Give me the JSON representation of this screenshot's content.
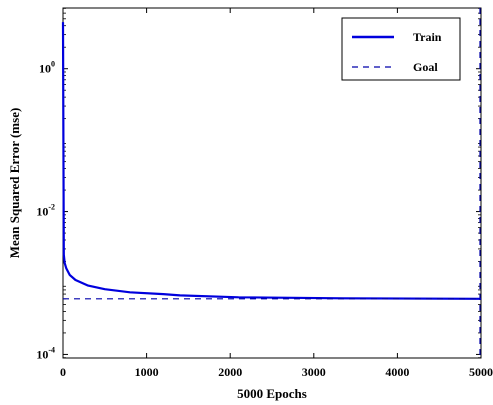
{
  "chart_data": {
    "type": "line",
    "xlabel": "5000 Epochs",
    "ylabel": "Mean Squared Error  (mse)",
    "xlim": [
      0,
      5000
    ],
    "ylim_log10": [
      -4.05,
      0.85
    ],
    "y_scale": "log",
    "grid": false,
    "legend_position": "top-right",
    "x_ticks": [
      "0",
      "1000",
      "2000",
      "3000",
      "4000",
      "5000"
    ],
    "x_tick_values": [
      0,
      1000,
      2000,
      3000,
      4000,
      5000
    ],
    "y_ticks": [
      {
        "base": "10",
        "exp": "0",
        "value_log10": 0
      },
      {
        "base": "10",
        "exp": "-2",
        "value_log10": -2
      },
      {
        "base": "10",
        "exp": "-4",
        "value_log10": -4
      }
    ],
    "series": [
      {
        "name": "Train",
        "color": "#0000dd",
        "style": "solid",
        "x": [
          0,
          5,
          10,
          20,
          40,
          80,
          150,
          300,
          500,
          800,
          1200,
          1400,
          2100,
          3350,
          5000
        ],
        "y": [
          4.5,
          0.1,
          0.0025,
          0.0019,
          0.0016,
          0.0013,
          0.0011,
          0.00092,
          0.00082,
          0.00074,
          0.0007,
          0.00067,
          0.00063,
          0.00061,
          0.0006
        ]
      },
      {
        "name": "Goal",
        "color": "#0000aa",
        "style": "dashed",
        "x": [
          0,
          5000
        ],
        "y": [
          0.0006,
          0.0006
        ]
      }
    ],
    "vertical_marker": {
      "x": 5000,
      "color": "#0000aa",
      "style": "dashed"
    }
  }
}
